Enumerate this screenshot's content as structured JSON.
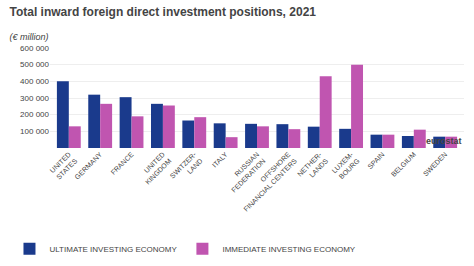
{
  "chart_data": {
    "type": "bar",
    "title": "Total inward foreign direct investment positions, 2021",
    "subtitle": "(€ million)",
    "categories": [
      "UNITED\nSTATES",
      "GERMANY",
      "FRANCE",
      "UNITED\nKINGDOM",
      "SWITZER-\nLAND",
      "ITALY",
      "RUSSIAN\nFEDERATION",
      "OFFSHORE\nFINANCIAL CENTERS",
      "NETHER-\nLANDS",
      "LUXEM-\nBOURG",
      "SPAIN",
      "BELGIUM",
      "SWEDEN"
    ],
    "series": [
      {
        "name": "ULTIMATE INVESTING ECONOMY",
        "color": "#1a3a8c",
        "values": [
          400000,
          320000,
          305000,
          265000,
          165000,
          148000,
          145000,
          143000,
          128000,
          115000,
          80000,
          72000,
          68000
        ]
      },
      {
        "name": "IMMEDIATE INVESTING ECONOMY",
        "color": "#c055b0",
        "values": [
          130000,
          265000,
          190000,
          255000,
          185000,
          65000,
          130000,
          113000,
          430000,
          500000,
          80000,
          110000,
          68000
        ]
      }
    ],
    "ylim": [
      0,
      600000
    ],
    "yticks": [
      {
        "value": 0,
        "label": null
      },
      {
        "value": 100000,
        "label": "100 000"
      },
      {
        "value": 200000,
        "label": "200 000"
      },
      {
        "value": 300000,
        "label": "300 000"
      },
      {
        "value": 400000,
        "label": "400 000"
      },
      {
        "value": 500000,
        "label": "500 000"
      },
      {
        "value": 600000,
        "label": "600 000"
      }
    ],
    "grid": true,
    "legend": "bottom",
    "annotations": [
      "eurostat"
    ]
  }
}
